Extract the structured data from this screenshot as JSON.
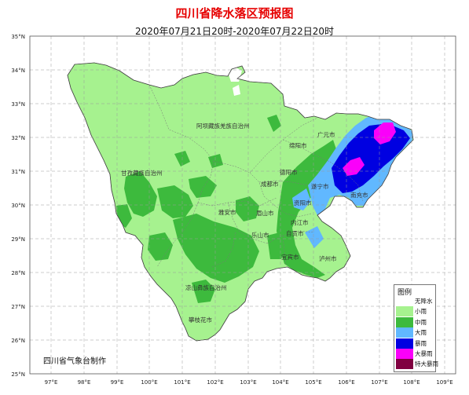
{
  "title": "四川省降水落区预报图",
  "subtitle": "2020年07月21日20时-2020年07月22日20时",
  "credit": "四川省气象台制作",
  "axes": {
    "lat_labels": [
      "35°N",
      "34°N",
      "33°N",
      "32°N",
      "31°N",
      "30°N",
      "29°N",
      "28°N",
      "27°N",
      "26°N",
      "25°N"
    ],
    "lon_labels": [
      "97°E",
      "98°E",
      "99°E",
      "100°E",
      "101°E",
      "102°E",
      "103°E",
      "104°E",
      "105°E",
      "106°E",
      "107°E",
      "108°E",
      "109°E"
    ]
  },
  "regions": {
    "aba": "阿坝藏族羌族自治州",
    "ganzi": "甘孜藏族自治州",
    "liangshan": "凉山彝族自治州",
    "guangyuan": "广元市",
    "mianyang": "绵阳市",
    "deyang": "德阳市",
    "chengdu": "成都市",
    "suining": "遂宁市",
    "nanchong": "南充市",
    "ziyang": "资阳市",
    "yaan": "雅安市",
    "meishan": "眉山市",
    "leshan": "乐山市",
    "neijiang": "内江市",
    "zigong": "自贡市",
    "yibin": "宜宾市",
    "luzhou": "泸州市",
    "panzhihua": "攀枝花市"
  },
  "legend": {
    "title": "图例",
    "items": [
      {
        "label": "无降水",
        "color": "#ffffff"
      },
      {
        "label": "小雨",
        "color": "#a6f28f"
      },
      {
        "label": "中雨",
        "color": "#3dba3d"
      },
      {
        "label": "大雨",
        "color": "#61b8ff"
      },
      {
        "label": "暴雨",
        "color": "#0000e1"
      },
      {
        "label": "大暴雨",
        "color": "#fa00fa"
      },
      {
        "label": "特大暴雨",
        "color": "#800040"
      }
    ]
  }
}
